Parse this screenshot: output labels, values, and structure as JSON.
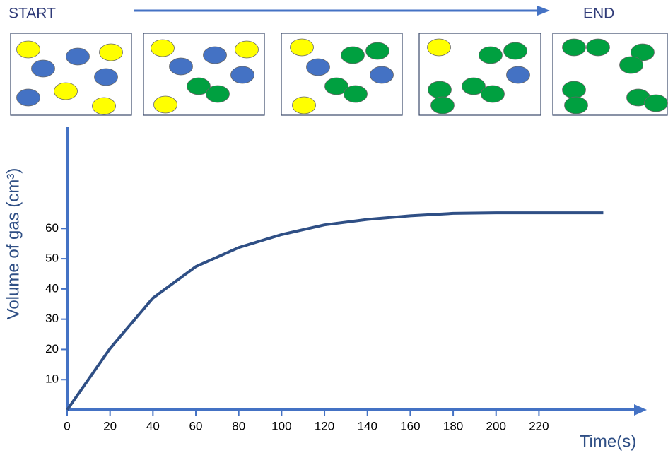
{
  "chart_data": {
    "type": "line",
    "annotations": [
      "START",
      "END"
    ],
    "x_label": "Time(s)",
    "y_label": "Volume of gas (cm³)",
    "x": [
      0,
      20,
      40,
      60,
      80,
      100,
      120,
      140,
      160,
      180,
      200,
      220,
      250
    ],
    "series": [
      {
        "color": "#2f4f85",
        "values": [
          0,
          20.3,
          37,
          47.4,
          53.7,
          58,
          61.2,
          63,
          64.2,
          65,
          65.2,
          65.2,
          65.2
        ]
      }
    ],
    "xlim": [
      0,
      267
    ],
    "ylim": [
      0,
      93.5
    ],
    "xticks": [
      0,
      20,
      40,
      60,
      80,
      100,
      120,
      140,
      160,
      180,
      200,
      220
    ],
    "yticks": [
      10,
      20,
      30,
      40,
      50,
      60
    ],
    "axis_color": "#4472c4"
  }
}
